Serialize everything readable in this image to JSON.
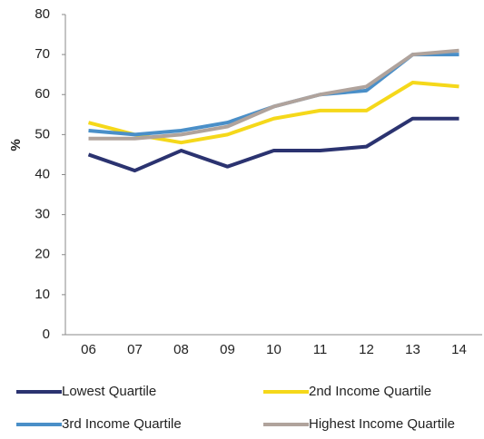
{
  "chart_data": {
    "type": "line",
    "y_label": "%",
    "categories": [
      "06",
      "07",
      "08",
      "09",
      "10",
      "11",
      "12",
      "13",
      "14"
    ],
    "series": [
      {
        "name": "Lowest Quartile",
        "color": "#2b3370",
        "values": [
          45,
          41,
          46,
          42,
          46,
          46,
          47,
          54,
          54
        ]
      },
      {
        "name": "2nd Income Quartile",
        "color": "#f5d81a",
        "values": [
          53,
          50,
          48,
          50,
          54,
          56,
          56,
          63,
          62
        ]
      },
      {
        "name": "3rd Income Quartile",
        "color": "#4a8fc8",
        "values": [
          51,
          50,
          51,
          53,
          57,
          60,
          61,
          70,
          70
        ]
      },
      {
        "name": "Highest Income Quartile",
        "color": "#b0a39c",
        "values": [
          49,
          49,
          50,
          52,
          57,
          60,
          62,
          70,
          71
        ]
      }
    ],
    "ylim": [
      0,
      80
    ],
    "yticks": [
      0,
      10,
      20,
      30,
      40,
      50,
      60,
      70,
      80
    ],
    "grid": false,
    "legend": "bottom"
  }
}
